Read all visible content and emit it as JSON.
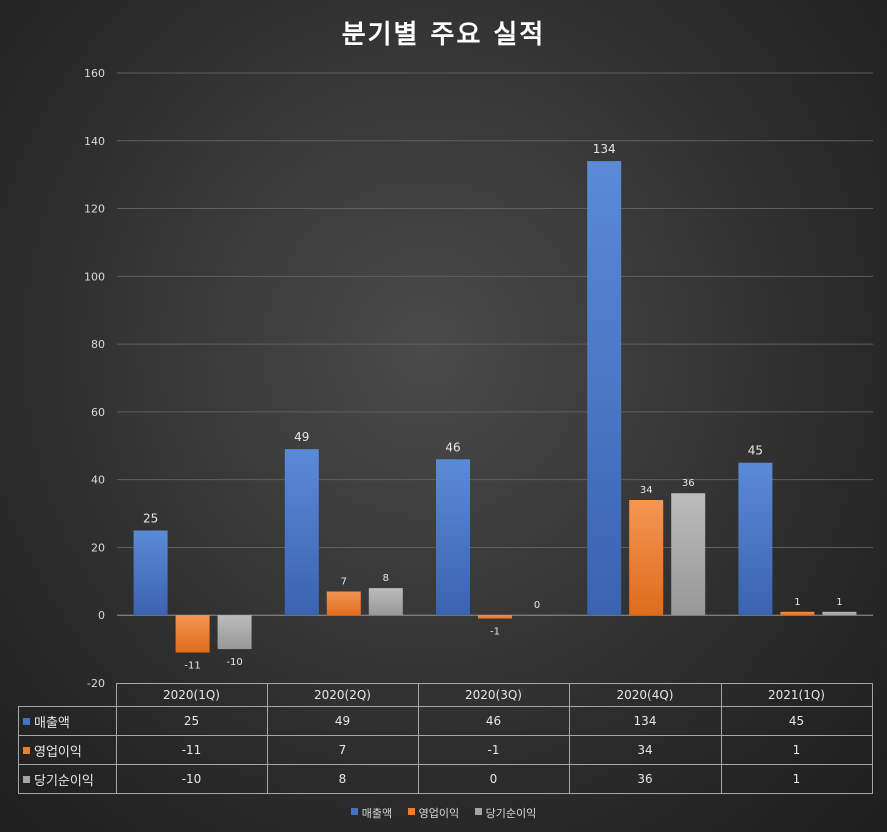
{
  "chart_data": {
    "type": "bar",
    "title": "분기별 주요 실적",
    "categories": [
      "2020(1Q)",
      "2020(2Q)",
      "2020(3Q)",
      "2020(4Q)",
      "2021(1Q)"
    ],
    "series": [
      {
        "name": "매출액",
        "values": [
          25,
          49,
          46,
          134,
          45
        ],
        "color": "#4472c4"
      },
      {
        "name": "영업이익",
        "values": [
          -11,
          7,
          -1,
          34,
          1
        ],
        "color": "#ed7d31"
      },
      {
        "name": "당기순이익",
        "values": [
          -10,
          8,
          0,
          36,
          1
        ],
        "color": "#a5a5a5"
      }
    ],
    "ylim": [
      -20,
      160
    ],
    "yticks": [
      -20,
      0,
      20,
      40,
      60,
      80,
      100,
      120,
      140,
      160
    ],
    "grid": true,
    "legend_position": "bottom",
    "data_table": true,
    "xlabel": "",
    "ylabel": ""
  }
}
